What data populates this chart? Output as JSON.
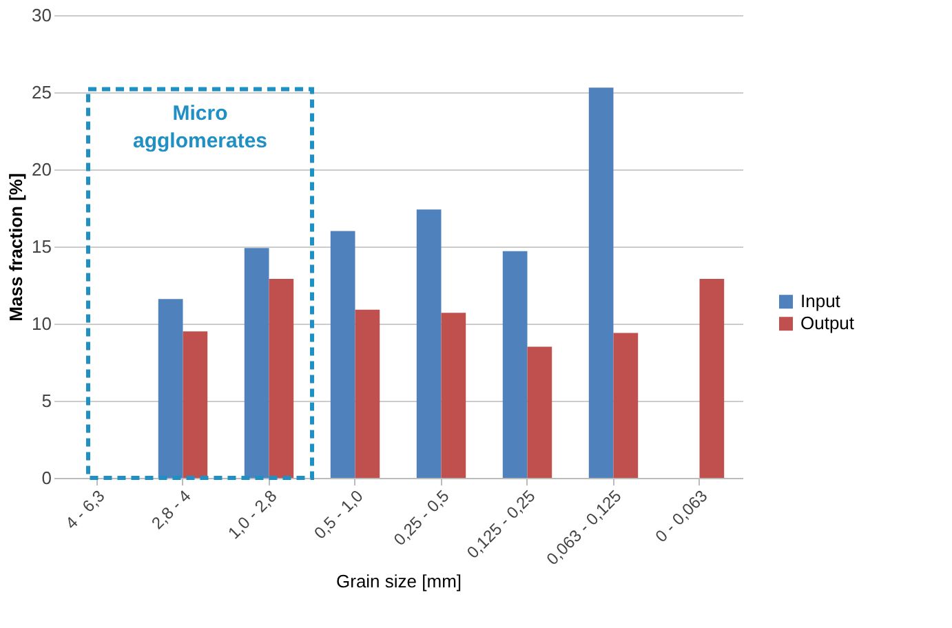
{
  "chart_data": {
    "type": "bar",
    "xlabel": "Grain size [mm]",
    "ylabel": "Mass fraction [%]",
    "categories": [
      "4 - 6,3",
      "2,8 - 4",
      "1,0 - 2,8",
      "0,5 - 1,0",
      "0,25 - 0,5",
      "0,125 - 0,25",
      "0,063 - 0,125",
      "0 - 0,063"
    ],
    "series": [
      {
        "name": "Input",
        "color": "#4f81bd",
        "values": [
          0,
          11.6,
          14.9,
          16.0,
          17.4,
          14.7,
          25.3,
          0
        ]
      },
      {
        "name": "Output",
        "color": "#c0504d",
        "values": [
          0,
          9.5,
          12.9,
          10.9,
          10.7,
          8.5,
          9.4,
          12.9
        ]
      }
    ],
    "ylim": [
      0,
      30
    ],
    "yticks": [
      0,
      5,
      10,
      15,
      20,
      25,
      30
    ],
    "grid": "y",
    "legend": "right",
    "annotations": [
      "Micro agglomerates"
    ]
  }
}
